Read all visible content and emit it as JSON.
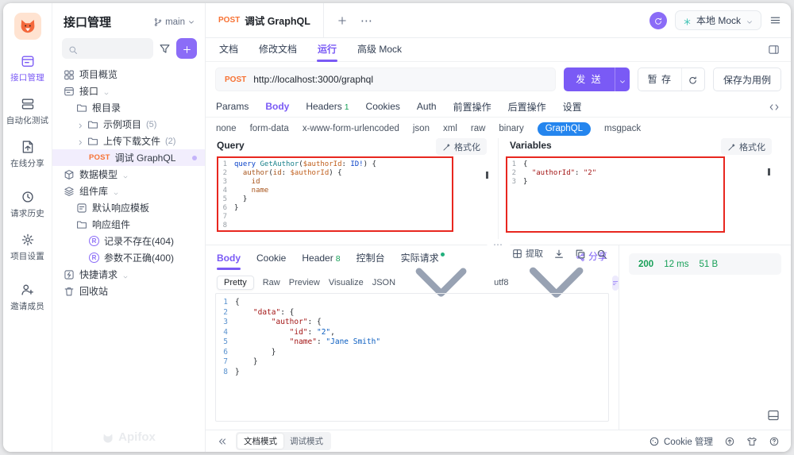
{
  "activity_bar": {
    "items": [
      {
        "id": "api-manage",
        "icon": "api-manage-icon",
        "label": "接口管理",
        "active": true
      },
      {
        "id": "automation",
        "icon": "automation-icon",
        "label": "自动化测试"
      },
      {
        "id": "online-share",
        "icon": "online-share-icon",
        "label": "在线分享"
      },
      {
        "id": "history",
        "icon": "request-history-icon",
        "label": "请求历史",
        "gap": true
      },
      {
        "id": "settings",
        "icon": "project-settings-icon",
        "label": "项目设置"
      },
      {
        "id": "invite",
        "icon": "invite-member-icon",
        "label": "邀请成员",
        "gap": true
      }
    ]
  },
  "sidebar": {
    "title": "接口管理",
    "branch": "main",
    "watermark": "Apifox",
    "tree": [
      {
        "icon": "overview",
        "label": "项目概览",
        "level": 0
      },
      {
        "icon": "api",
        "label": "接口",
        "level": 0,
        "caret": true
      },
      {
        "icon": "folder",
        "label": "根目录",
        "level": 1
      },
      {
        "chevron": true,
        "icon": "folder",
        "label": "示例项目",
        "count": "(5)",
        "level": 1
      },
      {
        "chevron": true,
        "icon": "folder",
        "label": "上传下载文件",
        "count": "(2)",
        "level": 1
      },
      {
        "method": "POST",
        "label": "调试 GraphQL",
        "level": 2,
        "selected": true,
        "dot": true
      },
      {
        "icon": "cube",
        "label": "数据模型",
        "level": 0,
        "caret": true
      },
      {
        "icon": "layers",
        "label": "组件库",
        "level": 0,
        "caret": true
      },
      {
        "icon": "template",
        "label": "默认响应模板",
        "level": 1
      },
      {
        "icon": "folder",
        "label": "响应组件",
        "level": 1
      },
      {
        "badge": "R",
        "label": "记录不存在(404)",
        "level": 2
      },
      {
        "badge": "R",
        "label": "参数不正确(400)",
        "level": 2
      },
      {
        "icon": "quick",
        "label": "快捷请求",
        "level": 0,
        "caret": true
      },
      {
        "icon": "trash",
        "label": "回收站",
        "level": 0
      }
    ]
  },
  "topbar": {
    "tab": {
      "method": "POST",
      "title": "调试 GraphQL"
    },
    "mock": {
      "label": "本地 Mock"
    }
  },
  "doc_tabs": [
    {
      "label": "文档"
    },
    {
      "label": "修改文档"
    },
    {
      "label": "运行",
      "active": true
    },
    {
      "label": "高级 Mock"
    }
  ],
  "request": {
    "method": "POST",
    "url": "http://localhost:3000/graphql",
    "send_label": "发 送",
    "stash_label": "暂 存",
    "save_label": "保存为用例",
    "tabs": [
      {
        "label": "Params"
      },
      {
        "label": "Body",
        "active": true
      },
      {
        "label": "Headers",
        "count": "1"
      },
      {
        "label": "Cookies"
      },
      {
        "label": "Auth"
      },
      {
        "label": "前置操作"
      },
      {
        "label": "后置操作"
      },
      {
        "label": "设置"
      }
    ],
    "body_types": [
      {
        "label": "none"
      },
      {
        "label": "form-data"
      },
      {
        "label": "x-www-form-urlencoded"
      },
      {
        "label": "json"
      },
      {
        "label": "xml"
      },
      {
        "label": "raw"
      },
      {
        "label": "binary"
      },
      {
        "label": "GraphQL",
        "active": true
      },
      {
        "label": "msgpack"
      }
    ]
  },
  "query_panel": {
    "title": "Query",
    "format_label": "格式化",
    "lines": [
      [
        [
          "query",
          "kw"
        ],
        [
          " ",
          "p"
        ],
        [
          "GetAuthor",
          "fn"
        ],
        [
          "(",
          "p"
        ],
        [
          "$authorId",
          "var"
        ],
        [
          ": ",
          "p"
        ],
        [
          "ID!",
          "type"
        ],
        [
          ") {",
          "p"
        ]
      ],
      [
        [
          "  author",
          "field"
        ],
        [
          "(",
          "p"
        ],
        [
          "id",
          "field"
        ],
        [
          ": ",
          "p"
        ],
        [
          "$authorId",
          "var"
        ],
        [
          ") {",
          "p"
        ]
      ],
      [
        [
          "    id",
          "field"
        ]
      ],
      [
        [
          "    name",
          "field"
        ]
      ],
      [
        [
          "  }",
          "p"
        ]
      ],
      [
        [
          "}",
          "p"
        ]
      ],
      [],
      []
    ]
  },
  "variables_panel": {
    "title": "Variables",
    "format_label": "格式化",
    "lines": [
      [
        [
          "{",
          "p"
        ]
      ],
      [
        [
          "  ",
          "p"
        ],
        [
          "\"authorId\"",
          "str"
        ],
        [
          ": ",
          "p"
        ],
        [
          "\"2\"",
          "str"
        ]
      ],
      [
        [
          "}",
          "p"
        ]
      ]
    ]
  },
  "response": {
    "tabs": [
      {
        "label": "Body",
        "active": true
      },
      {
        "label": "Cookie"
      },
      {
        "label": "Header",
        "count": "8"
      },
      {
        "label": "控制台"
      },
      {
        "label": "实际请求",
        "dot": true
      }
    ],
    "share_label": "分享",
    "status": {
      "code": "200",
      "time": "12 ms",
      "size": "51 B"
    },
    "view_modes": [
      {
        "label": "Pretty",
        "active": true
      },
      {
        "label": "Raw"
      },
      {
        "label": "Preview"
      },
      {
        "label": "Visualize"
      }
    ],
    "dropdowns": [
      {
        "label": "JSON"
      },
      {
        "label": "utf8"
      }
    ],
    "extract_label": "提取",
    "lines": [
      [
        [
          "{",
          "p"
        ]
      ],
      [
        [
          "    ",
          "p"
        ],
        [
          "\"data\"",
          "key"
        ],
        [
          ": {",
          "p"
        ]
      ],
      [
        [
          "        ",
          "p"
        ],
        [
          "\"author\"",
          "key"
        ],
        [
          ": {",
          "p"
        ]
      ],
      [
        [
          "            ",
          "p"
        ],
        [
          "\"id\"",
          "key"
        ],
        [
          ": ",
          "p"
        ],
        [
          "\"2\"",
          "val"
        ],
        [
          ",",
          "p"
        ]
      ],
      [
        [
          "            ",
          "p"
        ],
        [
          "\"name\"",
          "key"
        ],
        [
          ": ",
          "p"
        ],
        [
          "\"Jane Smith\"",
          "val"
        ]
      ],
      [
        [
          "        }",
          "p"
        ]
      ],
      [
        [
          "    }",
          "p"
        ]
      ],
      [
        [
          "}",
          "p"
        ]
      ]
    ]
  },
  "bottom_bar": {
    "modes": [
      {
        "label": "文档模式",
        "active": true
      },
      {
        "label": "调试模式"
      }
    ],
    "cookie_label": "Cookie 管理"
  }
}
